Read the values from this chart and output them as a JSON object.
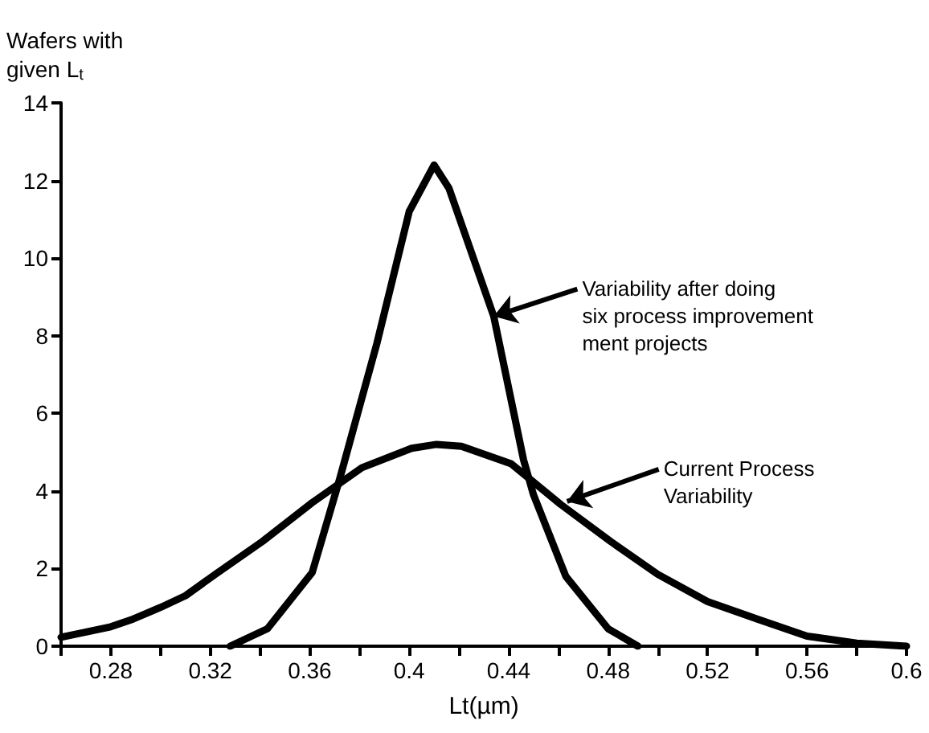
{
  "chart_data": {
    "type": "line",
    "xlabel": "Lt(µm)",
    "ylabel": "Wafers with\ngiven L$_{t}$",
    "xlim": [
      0.26,
      0.6
    ],
    "ylim": [
      0,
      14
    ],
    "xticks": [
      {
        "value": 0.26,
        "label": null
      },
      0.28,
      {
        "value": 0.3,
        "label": null
      },
      0.32,
      {
        "value": 0.34,
        "label": null
      },
      0.36,
      {
        "value": 0.38,
        "label": null
      },
      0.4,
      {
        "value": 0.42,
        "label": null
      },
      0.44,
      {
        "value": 0.46,
        "label": null
      },
      0.48,
      {
        "value": 0.5,
        "label": null
      },
      0.52,
      {
        "value": 0.54,
        "label": null
      },
      0.56,
      {
        "value": 0.58,
        "label": null
      },
      0.6
    ],
    "yticks": [
      0,
      2,
      4,
      6,
      8,
      10,
      12,
      14
    ],
    "grid": false,
    "marker": "none",
    "line_style": "solid",
    "series": [
      {
        "color": "#000000",
        "x": [
          0.26,
          0.28,
          0.289,
          0.3,
          0.31,
          0.322,
          0.341,
          0.361,
          0.381,
          0.401,
          0.411,
          0.421,
          0.441,
          0.461,
          0.481,
          0.5,
          0.52,
          0.54,
          0.56,
          0.58,
          0.6
        ],
        "values": [
          0.23,
          0.5,
          0.7,
          1.0,
          1.3,
          1.85,
          2.7,
          3.7,
          4.6,
          5.1,
          5.2,
          5.15,
          4.7,
          3.65,
          2.7,
          1.85,
          1.15,
          0.7,
          0.26,
          0.08,
          0
        ]
      },
      {
        "color": "#000000",
        "x": [
          0.328,
          0.343,
          0.361,
          0.372,
          0.387,
          0.4,
          0.41,
          0.416,
          0.434,
          0.446,
          0.45,
          0.463,
          0.48,
          0.492
        ],
        "values": [
          0,
          0.45,
          1.9,
          4.3,
          7.8,
          11.2,
          12.4,
          11.8,
          8.5,
          4.8,
          3.9,
          1.8,
          0.45,
          0
        ]
      }
    ],
    "annotations": [
      {
        "text": "Variability after doing\nsix process improvement\nment projects",
        "x": 0.434,
        "y": 8.5
      },
      {
        "text": "Current Process\nVariability",
        "x": 0.4635,
        "y": 3.73
      }
    ]
  }
}
